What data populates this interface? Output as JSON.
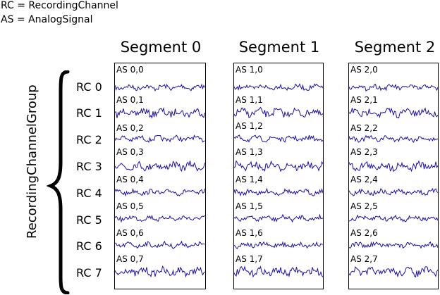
{
  "legend": {
    "line1": "RC = RecordingChannel",
    "line2": "AS = AnalogSignal"
  },
  "group_label": "RecordingChannelGroup",
  "channels": [
    "RC 0",
    "RC 1",
    "RC 2",
    "RC 3",
    "RC 4",
    "RC 5",
    "RC 6",
    "RC 7"
  ],
  "segments": [
    {
      "title": "Segment 0",
      "signals": [
        "AS 0,0",
        "AS 0,1",
        "AS 0,2",
        "AS 0,3",
        "AS 0,4",
        "AS 0,5",
        "AS 0,6",
        "AS 0,7"
      ]
    },
    {
      "title": "Segment 1",
      "signals": [
        "AS 1,0",
        "AS 1,1",
        "AS 1,2",
        "AS 1,3",
        "AS 1,4",
        "AS 1,5",
        "AS 1,6",
        "AS 1,7"
      ]
    },
    {
      "title": "Segment 2",
      "signals": [
        "AS 2,0",
        "AS 2,1",
        "AS 2,2",
        "AS 2,3",
        "AS 2,4",
        "AS 2,5",
        "AS 2,6",
        "AS 2,7"
      ]
    }
  ],
  "colors": {
    "trace": "#1a0dab",
    "border": "#000000"
  }
}
